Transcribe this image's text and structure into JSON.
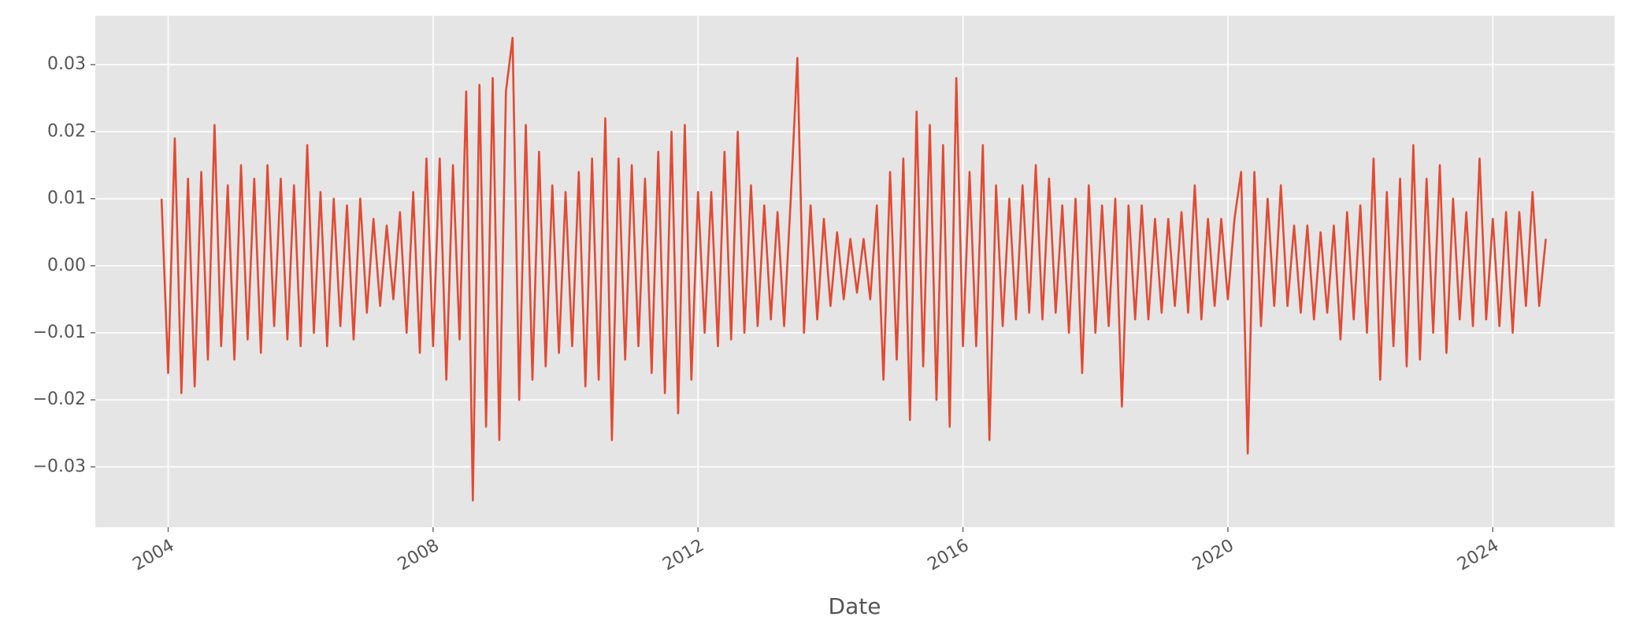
{
  "chart_data": {
    "type": "line",
    "x_label": "Date",
    "color": "#E24A33",
    "grid": true,
    "xlim": [
      2002.9,
      2025.84
    ],
    "xticks": [
      2004,
      2008,
      2012,
      2016,
      2020,
      2024
    ],
    "ylim": [
      -0.039,
      0.0373
    ],
    "yticks": [
      {
        "value": -0.03,
        "label": "−0.03"
      },
      {
        "value": -0.02,
        "label": "−0.02"
      },
      {
        "value": -0.01,
        "label": "−0.01"
      },
      {
        "value": 0,
        "label": "0.00"
      },
      0.01,
      0.02,
      0.03
    ],
    "x": [
      2003.9,
      2004.0,
      2004.1,
      2004.2,
      2004.3,
      2004.4,
      2004.5,
      2004.6,
      2004.7,
      2004.8,
      2004.9,
      2005.0,
      2005.1,
      2005.2,
      2005.3,
      2005.4,
      2005.5,
      2005.6,
      2005.7,
      2005.8,
      2005.9,
      2006.0,
      2006.1,
      2006.2,
      2006.3,
      2006.4,
      2006.5,
      2006.6,
      2006.7,
      2006.8,
      2006.9,
      2007.0,
      2007.1,
      2007.2,
      2007.3,
      2007.4,
      2007.5,
      2007.6,
      2007.7,
      2007.8,
      2007.9,
      2008.0,
      2008.1,
      2008.2,
      2008.3,
      2008.4,
      2008.5,
      2008.6,
      2008.7,
      2008.8,
      2008.9,
      2009.0,
      2009.1,
      2009.2,
      2009.3,
      2009.4,
      2009.5,
      2009.6,
      2009.7,
      2009.8,
      2009.9,
      2010.0,
      2010.1,
      2010.2,
      2010.3,
      2010.4,
      2010.5,
      2010.6,
      2010.7,
      2010.8,
      2010.9,
      2011.0,
      2011.1,
      2011.2,
      2011.3,
      2011.4,
      2011.5,
      2011.6,
      2011.7,
      2011.8,
      2011.9,
      2012.0,
      2012.1,
      2012.2,
      2012.3,
      2012.4,
      2012.5,
      2012.6,
      2012.7,
      2012.8,
      2012.9,
      2013.0,
      2013.1,
      2013.2,
      2013.3,
      2013.4,
      2013.5,
      2013.6,
      2013.7,
      2013.8,
      2013.9,
      2014.0,
      2014.1,
      2014.2,
      2014.3,
      2014.4,
      2014.5,
      2014.6,
      2014.7,
      2014.8,
      2014.9,
      2015.0,
      2015.1,
      2015.2,
      2015.3,
      2015.4,
      2015.5,
      2015.6,
      2015.7,
      2015.8,
      2015.9,
      2016.0,
      2016.1,
      2016.2,
      2016.3,
      2016.4,
      2016.5,
      2016.6,
      2016.7,
      2016.8,
      2016.9,
      2017.0,
      2017.1,
      2017.2,
      2017.3,
      2017.4,
      2017.5,
      2017.6,
      2017.7,
      2017.8,
      2017.9,
      2018.0,
      2018.1,
      2018.2,
      2018.3,
      2018.4,
      2018.5,
      2018.6,
      2018.7,
      2018.8,
      2018.9,
      2019.0,
      2019.1,
      2019.2,
      2019.3,
      2019.4,
      2019.5,
      2019.6,
      2019.7,
      2019.8,
      2019.9,
      2020.0,
      2020.1,
      2020.2,
      2020.3,
      2020.4,
      2020.5,
      2020.6,
      2020.7,
      2020.8,
      2020.9,
      2021.0,
      2021.1,
      2021.2,
      2021.3,
      2021.4,
      2021.5,
      2021.6,
      2021.7,
      2021.8,
      2021.9,
      2022.0,
      2022.1,
      2022.2,
      2022.3,
      2022.4,
      2022.5,
      2022.6,
      2022.7,
      2022.8,
      2022.9,
      2023.0,
      2023.1,
      2023.2,
      2023.3,
      2023.4,
      2023.5,
      2023.6,
      2023.7,
      2023.8,
      2023.9,
      2024.0,
      2024.1,
      2024.2,
      2024.3,
      2024.4,
      2024.5,
      2024.6,
      2024.7,
      2024.8
    ],
    "values": [
      0.01,
      -0.016,
      0.019,
      -0.019,
      0.013,
      -0.018,
      0.014,
      -0.014,
      0.021,
      -0.012,
      0.012,
      -0.014,
      0.015,
      -0.011,
      0.013,
      -0.013,
      0.015,
      -0.009,
      0.013,
      -0.011,
      0.012,
      -0.012,
      0.018,
      -0.01,
      0.011,
      -0.012,
      0.01,
      -0.009,
      0.009,
      -0.011,
      0.01,
      -0.007,
      0.007,
      -0.006,
      0.006,
      -0.005,
      0.008,
      -0.01,
      0.011,
      -0.013,
      0.016,
      -0.012,
      0.016,
      -0.017,
      0.015,
      -0.011,
      0.026,
      -0.035,
      0.027,
      -0.024,
      0.028,
      -0.026,
      0.026,
      0.034,
      -0.02,
      0.021,
      -0.017,
      0.017,
      -0.015,
      0.012,
      -0.013,
      0.011,
      -0.012,
      0.014,
      -0.018,
      0.016,
      -0.017,
      0.022,
      -0.026,
      0.016,
      -0.014,
      0.015,
      -0.012,
      0.013,
      -0.016,
      0.017,
      -0.019,
      0.02,
      -0.022,
      0.021,
      -0.017,
      0.011,
      -0.01,
      0.011,
      -0.012,
      0.017,
      -0.011,
      0.02,
      -0.01,
      0.012,
      -0.009,
      0.009,
      -0.008,
      0.008,
      -0.009,
      0.01,
      0.031,
      -0.01,
      0.009,
      -0.008,
      0.007,
      -0.006,
      0.005,
      -0.005,
      0.004,
      -0.004,
      0.004,
      -0.005,
      0.009,
      -0.017,
      0.014,
      -0.014,
      0.016,
      -0.023,
      0.023,
      -0.015,
      0.021,
      -0.02,
      0.018,
      -0.024,
      0.028,
      -0.012,
      0.014,
      -0.012,
      0.018,
      -0.026,
      0.012,
      -0.009,
      0.01,
      -0.008,
      0.012,
      -0.007,
      0.015,
      -0.008,
      0.013,
      -0.007,
      0.009,
      -0.01,
      0.01,
      -0.016,
      0.012,
      -0.01,
      0.009,
      -0.009,
      0.01,
      -0.021,
      0.009,
      -0.008,
      0.009,
      -0.008,
      0.007,
      -0.007,
      0.007,
      -0.006,
      0.008,
      -0.007,
      0.012,
      -0.008,
      0.007,
      -0.006,
      0.007,
      -0.005,
      0.007,
      0.014,
      -0.028,
      0.014,
      -0.009,
      0.01,
      -0.006,
      0.012,
      -0.006,
      0.006,
      -0.007,
      0.006,
      -0.008,
      0.005,
      -0.007,
      0.006,
      -0.011,
      0.008,
      -0.008,
      0.009,
      -0.01,
      0.016,
      -0.017,
      0.011,
      -0.012,
      0.013,
      -0.015,
      0.018,
      -0.014,
      0.013,
      -0.01,
      0.015,
      -0.013,
      0.01,
      -0.008,
      0.008,
      -0.009,
      0.016,
      -0.008,
      0.007,
      -0.009,
      0.008,
      -0.01,
      0.008,
      -0.006,
      0.011,
      -0.006,
      0.004
    ]
  }
}
